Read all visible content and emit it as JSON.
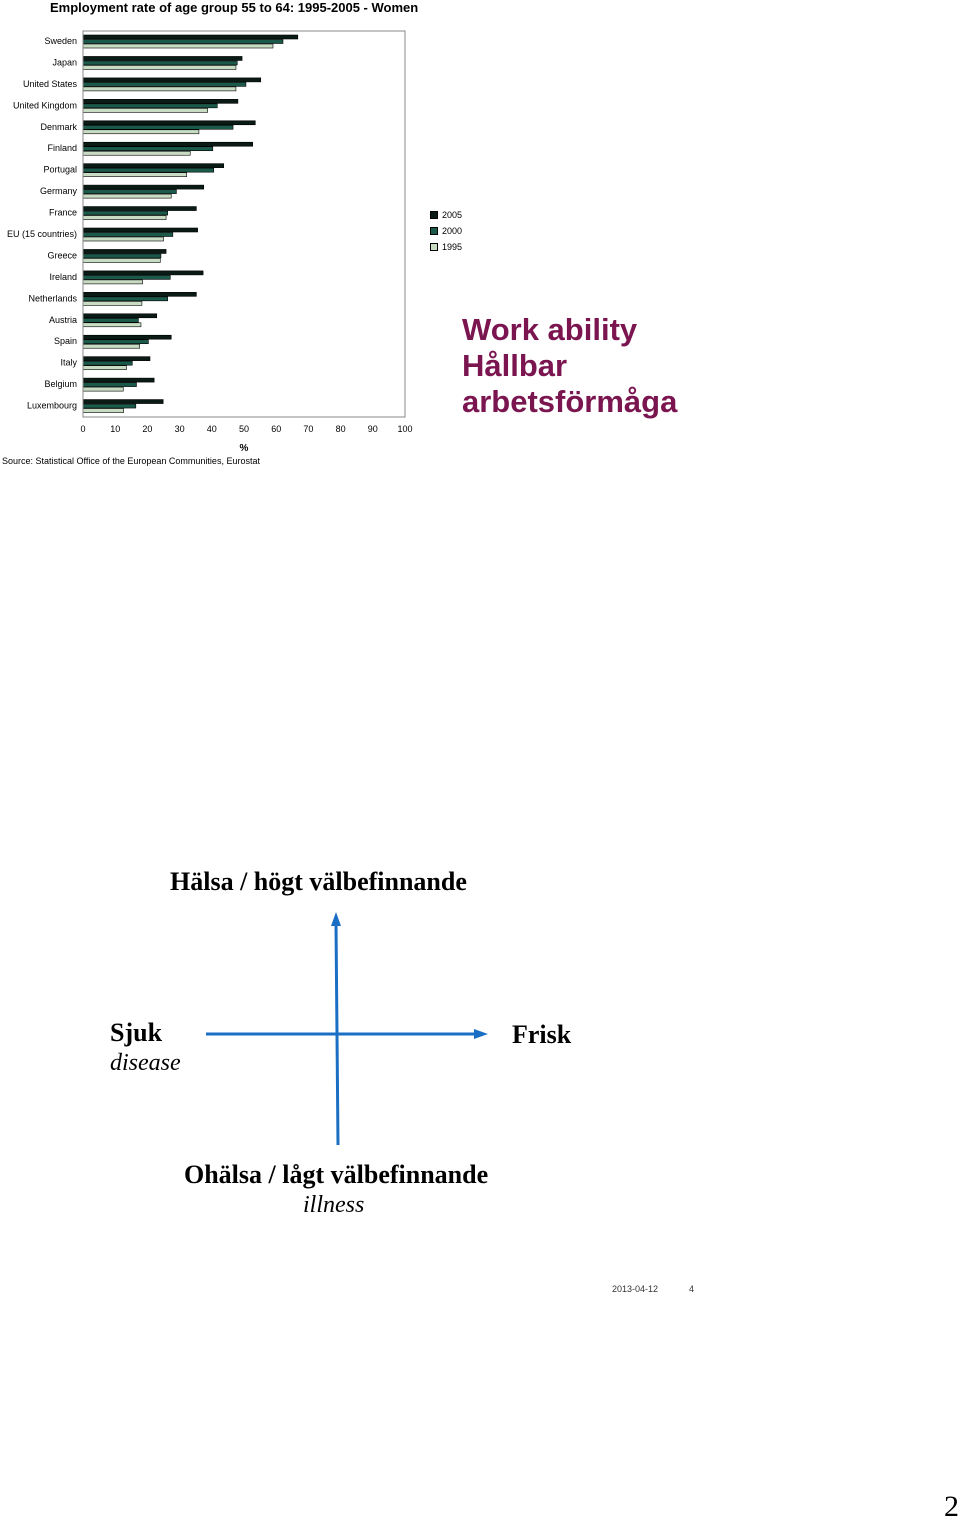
{
  "chart_data": {
    "type": "bar",
    "orientation": "horizontal",
    "title": "Employment rate of age group 55 to 64: 1995-2005 - Women",
    "xlabel": "%",
    "xlim": [
      0,
      100
    ],
    "xticks": [
      "0",
      "10",
      "20",
      "30",
      "40",
      "50",
      "60",
      "70",
      "80",
      "90",
      "100"
    ],
    "categories": [
      "Sweden",
      "Japan",
      "United States",
      "United Kingdom",
      "Denmark",
      "Finland",
      "Portugal",
      "Germany",
      "France",
      "EU (15 countries)",
      "Greece",
      "Ireland",
      "Netherlands",
      "Austria",
      "Spain",
      "Italy",
      "Belgium",
      "Luxembourg"
    ],
    "series": [
      {
        "name": "2005",
        "color": "#0a1a14",
        "values": [
          66.7,
          49.4,
          55.2,
          48.1,
          53.5,
          52.7,
          43.7,
          37.5,
          35.2,
          35.6,
          25.8,
          37.3,
          35.2,
          22.9,
          27.4,
          20.8,
          22.1,
          24.9
        ]
      },
      {
        "name": "2000",
        "color": "#1b5a4a",
        "values": [
          62.1,
          47.9,
          50.6,
          41.7,
          46.6,
          40.3,
          40.6,
          29.0,
          26.3,
          27.9,
          24.2,
          27.1,
          26.3,
          17.2,
          20.3,
          15.3,
          16.6,
          16.4
        ]
      },
      {
        "name": "1995",
        "color": "#c8dcc4",
        "values": [
          59.0,
          47.5,
          47.5,
          38.7,
          36.0,
          33.3,
          32.2,
          27.4,
          25.8,
          25.0,
          24.0,
          18.5,
          18.3,
          18.0,
          17.6,
          13.5,
          12.5,
          12.6
        ]
      }
    ],
    "legend_position": "right",
    "grid": false
  },
  "source": "Source: Statistical Office of the European Communities, Eurostat",
  "heading_lines": [
    "Work ability",
    "Hållbar",
    "arbetsförmåga"
  ],
  "diagram": {
    "top_label": "Hälsa / högt välbefinnande",
    "left_label": "Sjuk",
    "left_sublabel": "disease",
    "right_label": "Frisk",
    "bottom_label": "Ohälsa / lågt välbefinnande",
    "bottom_sublabel": "illness",
    "axis_color": "#1a6fc4"
  },
  "footer": {
    "date": "2013-04-12",
    "slide": "4"
  },
  "page_number": "2"
}
